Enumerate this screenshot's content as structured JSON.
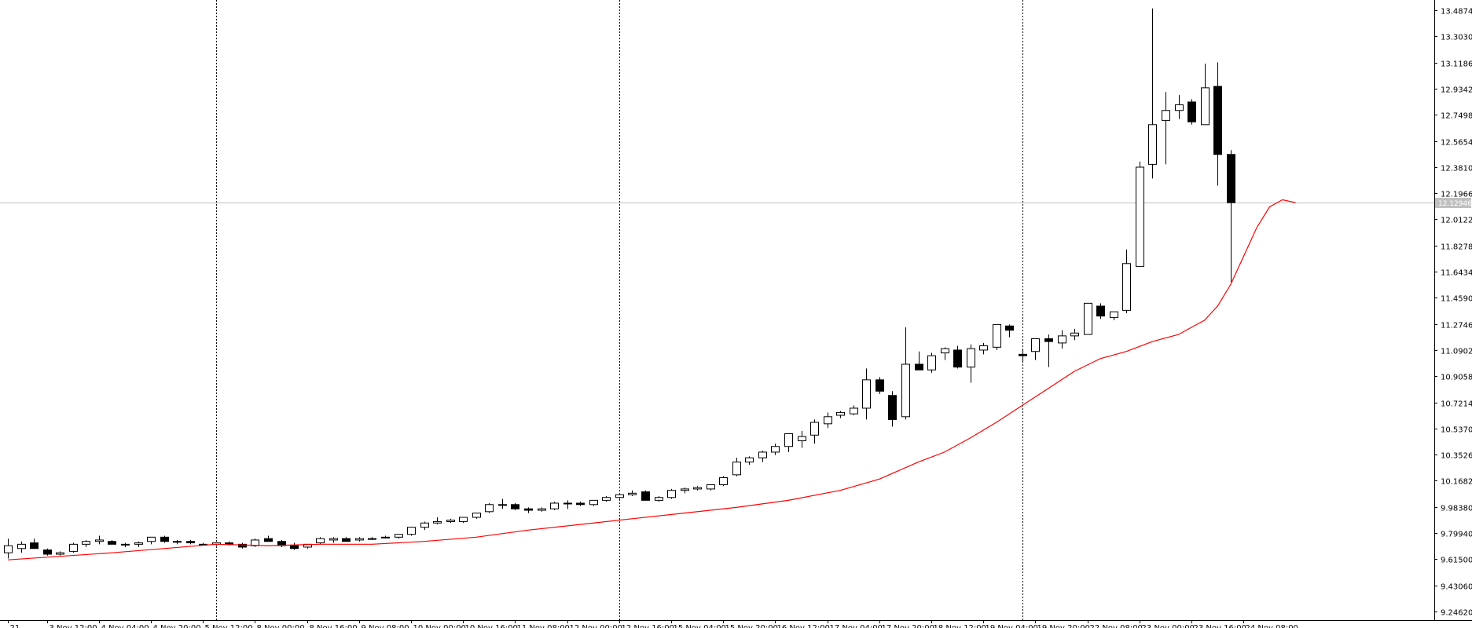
{
  "chart_data": {
    "type": "candlestick",
    "instrument": "",
    "timeframe": "H4",
    "ylim": [
      9.14,
      13.56
    ],
    "y_ticks": [
      "13.48740",
      "13.30300",
      "13.11860",
      "12.93420",
      "12.74980",
      "12.56540",
      "12.38100",
      "12.19660",
      "12.01220",
      "11.82780",
      "11.64340",
      "11.45900",
      "11.27460",
      "11.09020",
      "10.90580",
      "10.72140",
      "10.53700",
      "10.35260",
      "10.16820",
      "9.98380",
      "9.79940",
      "9.61500",
      "9.43060",
      "9.24620"
    ],
    "current_price": 12.12946,
    "current_price_label": "12.12946",
    "x_labels": [
      {
        "i": 0,
        "text": "21"
      },
      {
        "i": 3,
        "text": "3 Nov 12:00"
      },
      {
        "i": 7,
        "text": "4 Nov 04:00"
      },
      {
        "i": 11,
        "text": "4 Nov 20:00"
      },
      {
        "i": 15,
        "text": "5 Nov 12:00"
      },
      {
        "i": 19,
        "text": "8 Nov 00:00"
      },
      {
        "i": 23,
        "text": "8 Nov 16:00"
      },
      {
        "i": 27,
        "text": "9 Nov 08:00"
      },
      {
        "i": 31,
        "text": "10 Nov 00:00"
      },
      {
        "i": 35,
        "text": "10 Nov 16:00"
      },
      {
        "i": 39,
        "text": "11 Nov 08:00"
      },
      {
        "i": 43,
        "text": "12 Nov 00:00"
      },
      {
        "i": 47,
        "text": "12 Nov 16:00"
      },
      {
        "i": 51,
        "text": "15 Nov 04:00"
      },
      {
        "i": 55,
        "text": "15 Nov 20:00"
      },
      {
        "i": 59,
        "text": "16 Nov 12:00"
      },
      {
        "i": 63,
        "text": "17 Nov 04:00"
      },
      {
        "i": 67,
        "text": "17 Nov 20:00"
      },
      {
        "i": 71,
        "text": "18 Nov 12:00"
      },
      {
        "i": 75,
        "text": "19 Nov 04:00"
      },
      {
        "i": 79,
        "text": "19 Nov 20:00"
      },
      {
        "i": 83,
        "text": "22 Nov 08:00"
      },
      {
        "i": 87,
        "text": "23 Nov 00:00"
      },
      {
        "i": 91,
        "text": "23 Nov 16:00"
      },
      {
        "i": 95,
        "text": "24 Nov 08:00"
      }
    ],
    "separators_at": [
      16,
      47,
      78
    ],
    "candles": [
      [
        9.66,
        9.76,
        9.62,
        9.71
      ],
      [
        9.69,
        9.74,
        9.66,
        9.72
      ],
      [
        9.73,
        9.76,
        9.69,
        9.69
      ],
      [
        9.68,
        9.69,
        9.64,
        9.65
      ],
      [
        9.65,
        9.67,
        9.64,
        9.66
      ],
      [
        9.67,
        9.73,
        9.66,
        9.72
      ],
      [
        9.72,
        9.75,
        9.7,
        9.74
      ],
      [
        9.74,
        9.78,
        9.72,
        9.75
      ],
      [
        9.74,
        9.75,
        9.72,
        9.72
      ],
      [
        9.72,
        9.73,
        9.7,
        9.72
      ],
      [
        9.72,
        9.74,
        9.7,
        9.73
      ],
      [
        9.74,
        9.77,
        9.72,
        9.77
      ],
      [
        9.77,
        9.78,
        9.73,
        9.74
      ],
      [
        9.74,
        9.75,
        9.72,
        9.74
      ],
      [
        9.74,
        9.75,
        9.72,
        9.73
      ],
      [
        9.72,
        9.73,
        9.72,
        9.72
      ],
      [
        9.72,
        9.73,
        9.71,
        9.73
      ],
      [
        9.73,
        9.74,
        9.71,
        9.72
      ],
      [
        9.72,
        9.73,
        9.69,
        9.7
      ],
      [
        9.71,
        9.76,
        9.7,
        9.75
      ],
      [
        9.76,
        9.78,
        9.74,
        9.74
      ],
      [
        9.74,
        9.75,
        9.7,
        9.71
      ],
      [
        9.71,
        9.73,
        9.68,
        9.69
      ],
      [
        9.7,
        9.72,
        9.69,
        9.72
      ],
      [
        9.73,
        9.77,
        9.72,
        9.76
      ],
      [
        9.75,
        9.77,
        9.73,
        9.76
      ],
      [
        9.76,
        9.77,
        9.74,
        9.74
      ],
      [
        9.75,
        9.77,
        9.74,
        9.76
      ],
      [
        9.76,
        9.77,
        9.75,
        9.76
      ],
      [
        9.77,
        9.78,
        9.76,
        9.77
      ],
      [
        9.77,
        9.79,
        9.76,
        9.79
      ],
      [
        9.79,
        9.84,
        9.78,
        9.84
      ],
      [
        9.84,
        9.88,
        9.82,
        9.87
      ],
      [
        9.87,
        9.91,
        9.86,
        9.88
      ],
      [
        9.88,
        9.9,
        9.87,
        9.89
      ],
      [
        9.88,
        9.91,
        9.87,
        9.91
      ],
      [
        9.91,
        9.94,
        9.9,
        9.94
      ],
      [
        9.95,
        10.01,
        9.94,
        10.0
      ],
      [
        10.0,
        10.04,
        9.97,
        10.0
      ],
      [
        10.0,
        10.01,
        9.96,
        9.97
      ],
      [
        9.97,
        9.98,
        9.94,
        9.96
      ],
      [
        9.96,
        9.98,
        9.95,
        9.97
      ],
      [
        9.97,
        10.02,
        9.96,
        10.01
      ],
      [
        10.01,
        10.03,
        9.97,
        10.01
      ],
      [
        10.01,
        10.02,
        9.99,
        10.0
      ],
      [
        10.0,
        10.03,
        9.99,
        10.03
      ],
      [
        10.03,
        10.06,
        10.02,
        10.05
      ],
      [
        10.05,
        10.08,
        10.04,
        10.07
      ],
      [
        10.07,
        10.1,
        10.06,
        10.08
      ],
      [
        10.09,
        10.1,
        10.03,
        10.03
      ],
      [
        10.03,
        10.06,
        10.02,
        10.05
      ],
      [
        10.05,
        10.11,
        10.04,
        10.1
      ],
      [
        10.1,
        10.12,
        10.08,
        10.11
      ],
      [
        10.11,
        10.13,
        10.1,
        10.12
      ],
      [
        10.11,
        10.14,
        10.1,
        10.14
      ],
      [
        10.14,
        10.2,
        10.13,
        10.19
      ],
      [
        10.21,
        10.33,
        10.2,
        10.3
      ],
      [
        10.3,
        10.34,
        10.28,
        10.33
      ],
      [
        10.33,
        10.38,
        10.3,
        10.37
      ],
      [
        10.37,
        10.43,
        10.35,
        10.41
      ],
      [
        10.41,
        10.49,
        10.37,
        10.5
      ],
      [
        10.45,
        10.52,
        10.4,
        10.48
      ],
      [
        10.49,
        10.6,
        10.43,
        10.58
      ],
      [
        10.57,
        10.65,
        10.54,
        10.62
      ],
      [
        10.63,
        10.66,
        10.61,
        10.65
      ],
      [
        10.64,
        10.7,
        10.63,
        10.68
      ],
      [
        10.68,
        10.96,
        10.6,
        10.88
      ],
      [
        10.88,
        10.9,
        10.78,
        10.8
      ],
      [
        10.77,
        10.8,
        10.55,
        10.6
      ],
      [
        10.62,
        11.25,
        10.6,
        10.99
      ],
      [
        10.99,
        11.08,
        10.95,
        10.95
      ],
      [
        10.95,
        11.07,
        10.93,
        11.05
      ],
      [
        11.07,
        11.11,
        11.02,
        11.1
      ],
      [
        11.09,
        11.12,
        10.96,
        10.97
      ],
      [
        10.97,
        11.13,
        10.86,
        11.1
      ],
      [
        11.09,
        11.14,
        11.06,
        11.12
      ],
      [
        11.11,
        11.27,
        11.09,
        11.27
      ],
      [
        11.26,
        11.27,
        11.18,
        11.23
      ],
      [
        11.06,
        11.09,
        11.0,
        11.05
      ],
      [
        11.08,
        11.17,
        11.02,
        11.17
      ],
      [
        11.17,
        11.2,
        10.97,
        11.15
      ],
      [
        11.14,
        11.23,
        11.1,
        11.19
      ],
      [
        11.19,
        11.24,
        11.16,
        11.21
      ],
      [
        11.2,
        11.38,
        11.2,
        11.42
      ],
      [
        11.4,
        11.42,
        11.31,
        11.33
      ],
      [
        11.32,
        11.35,
        11.3,
        11.36
      ],
      [
        11.37,
        11.8,
        11.35,
        11.7
      ],
      [
        11.68,
        12.42,
        11.7,
        12.38
      ],
      [
        12.4,
        13.5,
        12.3,
        12.68
      ],
      [
        12.71,
        12.91,
        12.4,
        12.78
      ],
      [
        12.78,
        12.89,
        12.72,
        12.82
      ],
      [
        12.84,
        12.86,
        12.68,
        12.7
      ],
      [
        12.68,
        13.11,
        12.69,
        12.94
      ],
      [
        12.95,
        13.12,
        12.25,
        12.47
      ],
      [
        12.47,
        12.5,
        11.57,
        12.13
      ]
    ],
    "ma": [
      [
        0,
        9.61
      ],
      [
        8,
        9.66
      ],
      [
        12,
        9.69
      ],
      [
        16,
        9.72
      ],
      [
        20,
        9.71
      ],
      [
        24,
        9.72
      ],
      [
        28,
        9.72
      ],
      [
        32,
        9.74
      ],
      [
        36,
        9.77
      ],
      [
        40,
        9.82
      ],
      [
        44,
        9.86
      ],
      [
        48,
        9.9
      ],
      [
        52,
        9.94
      ],
      [
        56,
        9.98
      ],
      [
        60,
        10.03
      ],
      [
        64,
        10.1
      ],
      [
        67,
        10.18
      ],
      [
        70,
        10.3
      ],
      [
        72,
        10.37
      ],
      [
        74,
        10.47
      ],
      [
        76,
        10.58
      ],
      [
        78,
        10.7
      ],
      [
        80,
        10.82
      ],
      [
        82,
        10.94
      ],
      [
        84,
        11.03
      ],
      [
        86,
        11.08
      ],
      [
        88,
        11.15
      ],
      [
        90,
        11.2
      ],
      [
        91,
        11.25
      ],
      [
        92,
        11.3
      ],
      [
        93,
        11.4
      ],
      [
        94,
        11.55
      ],
      [
        95,
        11.75
      ],
      [
        96,
        11.95
      ],
      [
        97,
        12.1
      ],
      [
        98,
        12.15
      ],
      [
        99,
        12.13
      ]
    ],
    "colors": {
      "ma": "#ff0000",
      "candle_border": "#000000",
      "bull_body": "#ffffff",
      "bear_body": "#000000",
      "price_line": "#c0c0c0",
      "price_label_bg": "#c0c0c0",
      "axis": "#000000",
      "separator": "#000000"
    },
    "grid": false
  }
}
